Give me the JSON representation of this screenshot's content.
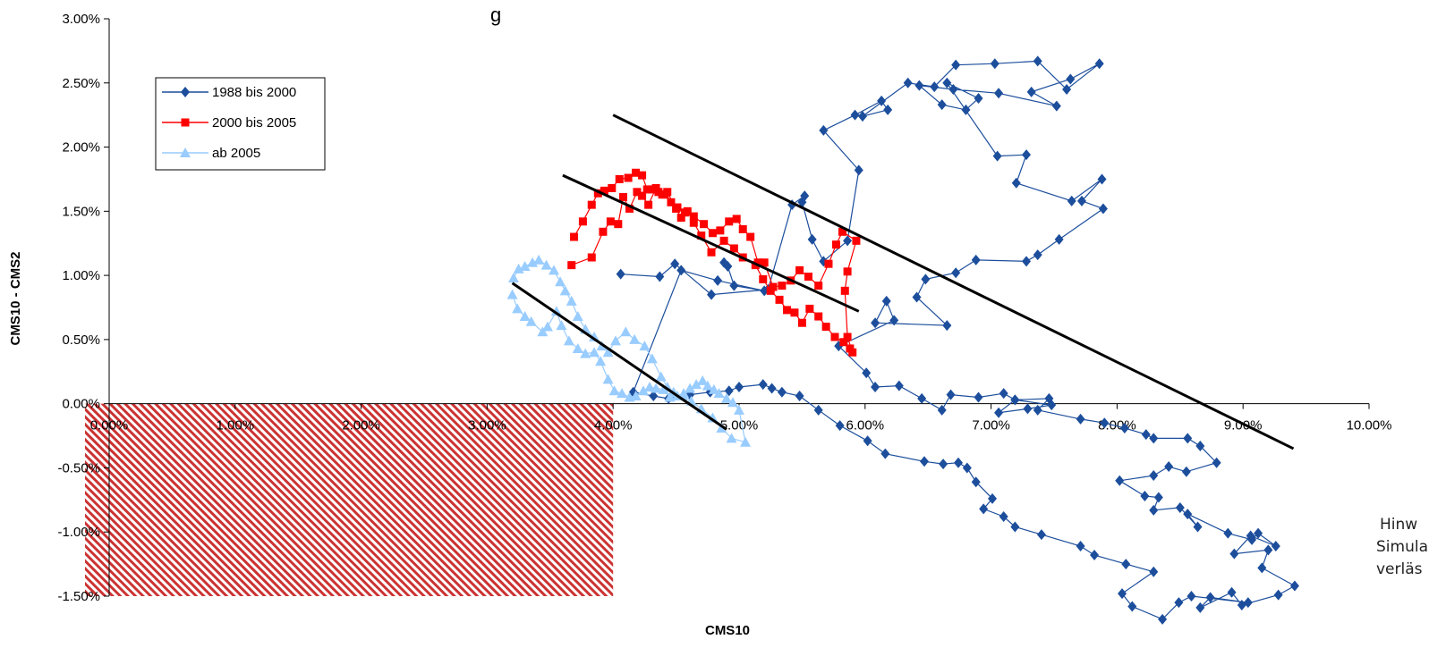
{
  "chart_data": {
    "type": "scatter",
    "title": "",
    "xlabel": "CMS10",
    "ylabel": "CMS10 - CMS2",
    "xlim": [
      0,
      0.1
    ],
    "ylim": [
      -0.015,
      0.03
    ],
    "x_ticks": [
      "0.00%",
      "1.00%",
      "2.00%",
      "3.00%",
      "4.00%",
      "5.00%",
      "6.00%",
      "7.00%",
      "8.00%",
      "9.00%",
      "10.00%"
    ],
    "y_ticks": [
      "3.00%",
      "2.50%",
      "2.00%",
      "1.50%",
      "1.00%",
      "0.50%",
      "0.00%",
      "-0.50%",
      "-1.00%",
      "-1.50%"
    ],
    "legend_position": "top-left",
    "colors": {
      "s1": "#1c4e9c",
      "s2": "#ff0000",
      "s3": "#99ccff",
      "trend": "#000000",
      "hatch": "#cc3333"
    },
    "shaded_region": {
      "x": [
        0,
        0.04
      ],
      "y": [
        -0.015,
        0
      ]
    },
    "series": [
      {
        "name": "1988 bis 2000",
        "marker": "diamond",
        "x": [
          0.0406,
          0.0437,
          0.0449,
          0.0478,
          0.0523,
          0.0542,
          0.0552,
          0.055,
          0.0558,
          0.0567,
          0.0586,
          0.0595,
          0.0567,
          0.0592,
          0.0613,
          0.0618,
          0.0598,
          0.0634,
          0.0655,
          0.0672,
          0.0703,
          0.0737,
          0.076,
          0.0786,
          0.0763,
          0.0732,
          0.0752,
          0.0706,
          0.067,
          0.0643,
          0.0661,
          0.068,
          0.069,
          0.0665,
          0.0705,
          0.0728,
          0.072,
          0.0764,
          0.0788,
          0.0772,
          0.0789,
          0.0754,
          0.0737,
          0.0728,
          0.0688,
          0.0672,
          0.0648,
          0.0641,
          0.0665,
          0.0608,
          0.0617,
          0.0623,
          0.0579,
          0.0601,
          0.0608,
          0.0627,
          0.0645,
          0.0661,
          0.0668,
          0.069,
          0.071,
          0.0719,
          0.0748,
          0.0729,
          0.0706,
          0.0719,
          0.0746,
          0.0737,
          0.0771,
          0.079,
          0.0806,
          0.0823,
          0.0829,
          0.0856,
          0.0866,
          0.0879,
          0.0855,
          0.0841,
          0.0829,
          0.0802,
          0.0822,
          0.0833,
          0.0829,
          0.085,
          0.0864,
          0.0856,
          0.0888,
          0.0907,
          0.0912,
          0.0926,
          0.0906,
          0.0893,
          0.092,
          0.0915,
          0.0941,
          0.0928,
          0.0899,
          0.0891,
          0.0866,
          0.0874,
          0.0904,
          0.0859,
          0.0849,
          0.0836,
          0.0812,
          0.0804,
          0.0829,
          0.0807,
          0.0782,
          0.0771,
          0.074,
          0.0719,
          0.071,
          0.0694,
          0.0701,
          0.0688,
          0.0681,
          0.0674,
          0.0662,
          0.0647,
          0.0616,
          0.0602,
          0.058,
          0.0563,
          0.0548,
          0.0534,
          0.0526,
          0.0519,
          0.05,
          0.0492,
          0.0477,
          0.0461,
          0.0444,
          0.0432,
          0.0416,
          0.0454,
          0.0483,
          0.052,
          0.0496,
          0.0491,
          0.0488
        ],
        "y": [
          0.0101,
          0.0099,
          0.0109,
          0.0085,
          0.0089,
          0.0155,
          0.0162,
          0.0157,
          0.0128,
          0.0111,
          0.0127,
          0.0182,
          0.0213,
          0.0225,
          0.0236,
          0.0229,
          0.0224,
          0.025,
          0.0247,
          0.0264,
          0.0265,
          0.0267,
          0.0245,
          0.0265,
          0.0253,
          0.0243,
          0.0232,
          0.0242,
          0.0245,
          0.0248,
          0.0233,
          0.0229,
          0.0238,
          0.025,
          0.0193,
          0.0194,
          0.0172,
          0.0158,
          0.0175,
          0.0158,
          0.0152,
          0.0128,
          0.0116,
          0.0111,
          0.0112,
          0.0102,
          0.0097,
          0.0083,
          0.0061,
          0.0063,
          0.008,
          0.0065,
          0.0045,
          0.0024,
          0.0013,
          0.0014,
          0.0004,
          -0.0005,
          0.0007,
          0.0005,
          0.0008,
          0.0003,
          -0.0001,
          -0.0004,
          -0.0007,
          0.0003,
          0.0004,
          -0.0005,
          -0.0012,
          -0.0015,
          -0.0019,
          -0.0024,
          -0.0027,
          -0.0027,
          -0.0033,
          -0.0046,
          -0.0053,
          -0.0049,
          -0.0056,
          -0.006,
          -0.0072,
          -0.0073,
          -0.0083,
          -0.0081,
          -0.0096,
          -0.0086,
          -0.0101,
          -0.0106,
          -0.0101,
          -0.0111,
          -0.0103,
          -0.0117,
          -0.0114,
          -0.0128,
          -0.0142,
          -0.0149,
          -0.0157,
          -0.0147,
          -0.0159,
          -0.0151,
          -0.0155,
          -0.015,
          -0.0155,
          -0.0168,
          -0.0158,
          -0.0148,
          -0.0131,
          -0.0125,
          -0.0118,
          -0.0111,
          -0.0102,
          -0.0096,
          -0.0088,
          -0.0082,
          -0.0074,
          -0.0061,
          -0.005,
          -0.0046,
          -0.0047,
          -0.0045,
          -0.0039,
          -0.0029,
          -0.0017,
          -0.0005,
          0.0006,
          0.0009,
          0.0012,
          0.0015,
          0.0013,
          0.001,
          0.0009,
          0.0007,
          0.0004,
          0.0006,
          0.0009,
          0.0104,
          0.0096,
          0.0088,
          0.0092,
          0.0107,
          0.011
        ]
      },
      {
        "name": "2000 bis 2005",
        "marker": "square",
        "x": [
          0.0367,
          0.0383,
          0.0392,
          0.0398,
          0.0404,
          0.0408,
          0.0413,
          0.0419,
          0.0423,
          0.0428,
          0.0434,
          0.0439,
          0.0443,
          0.045,
          0.0454,
          0.0459,
          0.0464,
          0.047,
          0.0478,
          0.0488,
          0.0496,
          0.0503,
          0.0513,
          0.0519,
          0.0525,
          0.0532,
          0.0538,
          0.0544,
          0.055,
          0.0556,
          0.0563,
          0.0569,
          0.0576,
          0.0583,
          0.0588,
          0.059,
          0.0586,
          0.0584,
          0.0586,
          0.0593,
          0.0582,
          0.0577,
          0.0571,
          0.0563,
          0.0555,
          0.0548,
          0.0541,
          0.0534,
          0.0527,
          0.052,
          0.0515,
          0.0509,
          0.0503,
          0.0498,
          0.0492,
          0.0485,
          0.0479,
          0.0472,
          0.0464,
          0.0457,
          0.0451,
          0.0446,
          0.0441,
          0.0436,
          0.0431,
          0.0427,
          0.0423,
          0.0418,
          0.0412,
          0.0405,
          0.0399,
          0.0393,
          0.0388,
          0.0383,
          0.0376,
          0.0369
        ],
        "y": [
          0.0108,
          0.0114,
          0.0134,
          0.0142,
          0.014,
          0.0161,
          0.0152,
          0.0165,
          0.0162,
          0.0155,
          0.0168,
          0.0163,
          0.0165,
          0.0152,
          0.0145,
          0.015,
          0.0141,
          0.0131,
          0.0118,
          0.0127,
          0.0121,
          0.0114,
          0.0108,
          0.0097,
          0.0088,
          0.0081,
          0.0073,
          0.0071,
          0.0063,
          0.0074,
          0.0068,
          0.006,
          0.0052,
          0.0048,
          0.0043,
          0.004,
          0.0052,
          0.0088,
          0.0103,
          0.0127,
          0.0134,
          0.0124,
          0.0109,
          0.0092,
          0.0099,
          0.0104,
          0.0096,
          0.0092,
          0.0091,
          0.011,
          0.011,
          0.013,
          0.0136,
          0.0144,
          0.0142,
          0.0135,
          0.0133,
          0.014,
          0.0146,
          0.0149,
          0.0153,
          0.0157,
          0.0163,
          0.0165,
          0.0167,
          0.0167,
          0.0178,
          0.018,
          0.0176,
          0.0175,
          0.0168,
          0.0166,
          0.0164,
          0.0155,
          0.0142,
          0.013
        ]
      },
      {
        "name": "ab 2005",
        "marker": "triangle",
        "x": [
          0.032,
          0.0324,
          0.033,
          0.0335,
          0.0344,
          0.0348,
          0.0355,
          0.0359,
          0.0365,
          0.0372,
          0.0378,
          0.0385,
          0.039,
          0.0396,
          0.0401,
          0.0407,
          0.0413,
          0.0418,
          0.0424,
          0.0429,
          0.0434,
          0.044,
          0.0445,
          0.0451,
          0.0456,
          0.0461,
          0.0466,
          0.0471,
          0.0475,
          0.048,
          0.0484,
          0.049,
          0.0495,
          0.05,
          0.0505,
          0.0494,
          0.0486,
          0.0479,
          0.047,
          0.0462,
          0.0455,
          0.0448,
          0.0443,
          0.0438,
          0.0431,
          0.0425,
          0.0417,
          0.041,
          0.0402,
          0.0396,
          0.0391,
          0.0385,
          0.0378,
          0.0372,
          0.0367,
          0.0362,
          0.0358,
          0.0353,
          0.0347,
          0.0341,
          0.0336,
          0.033,
          0.0325,
          0.0321
        ],
        "y": [
          0.0085,
          0.0074,
          0.0068,
          0.0064,
          0.0056,
          0.006,
          0.0072,
          0.0061,
          0.0049,
          0.0043,
          0.0039,
          0.004,
          0.0033,
          0.0019,
          0.001,
          0.0008,
          0.0005,
          0.0006,
          0.001,
          0.0013,
          0.0012,
          0.0011,
          0.0005,
          0.0006,
          0.0008,
          0.0012,
          0.0015,
          0.0018,
          0.0014,
          0.0011,
          0.0008,
          0.0004,
          0.0001,
          -0.0005,
          -0.003,
          -0.0027,
          -0.0019,
          -0.0011,
          -0.0004,
          0.0002,
          0.0006,
          0.0009,
          0.0013,
          0.0021,
          0.0035,
          0.0045,
          0.005,
          0.0056,
          0.0049,
          0.004,
          0.0045,
          0.0052,
          0.0058,
          0.0068,
          0.008,
          0.0088,
          0.0095,
          0.0104,
          0.0108,
          0.0112,
          0.011,
          0.0107,
          0.0105,
          0.0098
        ]
      }
    ],
    "trend_lines": [
      {
        "x": [
          0.04,
          0.094
        ],
        "y": [
          0.0225,
          -0.0035
        ]
      },
      {
        "x": [
          0.036,
          0.0595
        ],
        "y": [
          0.0178,
          0.0072
        ]
      },
      {
        "x": [
          0.032,
          0.049
        ],
        "y": [
          0.0094,
          -0.002
        ]
      }
    ]
  },
  "side_note_lines": [
    "Hinw",
    "Simula",
    "verläs"
  ],
  "top_partial_text": "g"
}
